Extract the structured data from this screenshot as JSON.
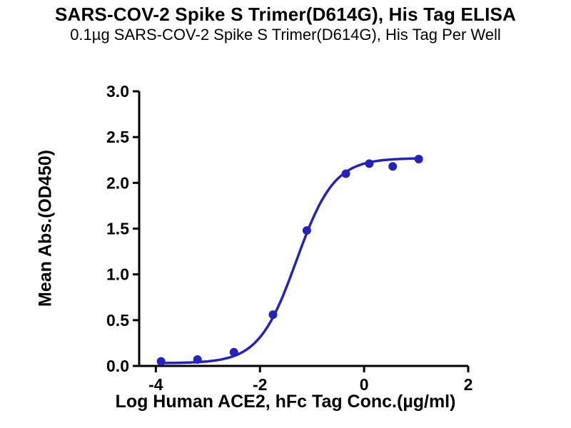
{
  "chart_data": {
    "type": "scatter",
    "title": "SARS-COV-2 Spike S Trimer(D614G), His Tag ELISA",
    "subtitle": "0.1µg SARS-COV-2 Spike S Trimer(D614G), His Tag Per Well",
    "xlabel": "Log Human ACE2, hFc Tag Conc.(µg/ml)",
    "ylabel": "Mean Abs.(OD450)",
    "xlim": [
      -4.32,
      2
    ],
    "ylim": [
      0,
      3
    ],
    "x_ticks": [
      -4,
      -2,
      0,
      2
    ],
    "y_ticks": [
      0.0,
      0.5,
      1.0,
      1.5,
      2.0,
      2.5,
      3.0
    ],
    "y_tick_decimals": 1,
    "grid": false,
    "legend": "none",
    "points": [
      {
        "x": -3.9,
        "y": 0.05
      },
      {
        "x": -3.2,
        "y": 0.07
      },
      {
        "x": -2.5,
        "y": 0.15
      },
      {
        "x": -1.75,
        "y": 0.56
      },
      {
        "x": -1.1,
        "y": 1.48
      },
      {
        "x": -0.35,
        "y": 2.1
      },
      {
        "x": 0.1,
        "y": 2.21
      },
      {
        "x": 0.55,
        "y": 2.18
      },
      {
        "x": 1.05,
        "y": 2.26
      }
    ],
    "fit": {
      "model": "4PL-sigmoid",
      "bottom": 0.03,
      "top": 2.27,
      "log_ec50": -1.3,
      "hill_slope": 1.2
    },
    "curve_x_range": [
      -3.9,
      1.05
    ],
    "series_color": "#2222c0",
    "axis_color": "#000000",
    "marker_radius": 6
  }
}
